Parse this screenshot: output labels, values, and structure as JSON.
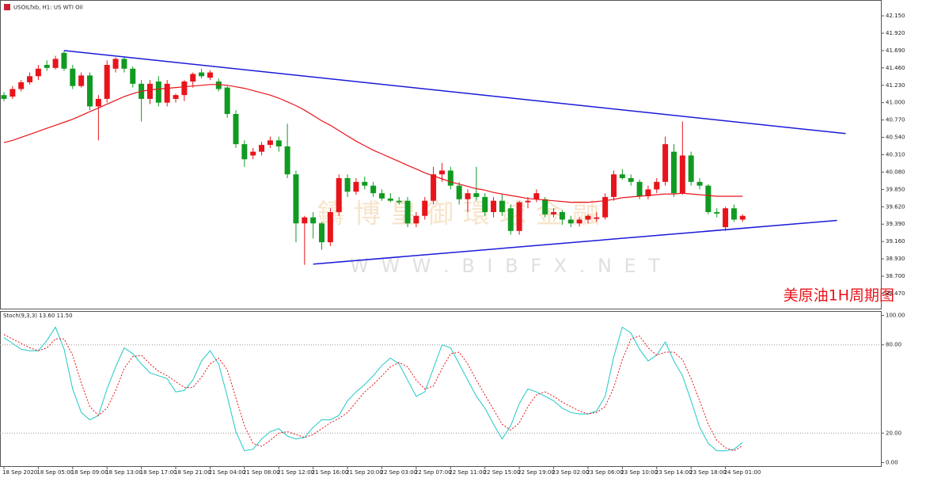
{
  "chart_data": [
    {
      "type": "candlestick",
      "title": "USOILfxb, H1: US WTI Oil",
      "annotation": "美原油1H周期图",
      "watermark": [
        "鑄博皇御環球金融",
        "W W W . B I B F X . N E T"
      ],
      "up_color": "#e8141b",
      "down_color": "#119a22",
      "xlim": [
        -0.46,
        102.1
      ],
      "ylim": [
        38.26,
        42.36
      ],
      "yticks": [
        {
          "value": 42.15,
          "label": "42.150"
        },
        {
          "value": 41.92,
          "label": "41.920"
        },
        {
          "value": 41.69,
          "label": "41.690"
        },
        {
          "value": 41.46,
          "label": "41.460"
        },
        {
          "value": 41.23,
          "label": "41.230"
        },
        {
          "value": 41.0,
          "label": "41.000"
        },
        {
          "value": 40.77,
          "label": "40.770"
        },
        {
          "value": 40.54,
          "label": "40.540"
        },
        {
          "value": 40.31,
          "label": "40.310"
        },
        {
          "value": 40.08,
          "label": "40.080"
        },
        {
          "value": 39.85,
          "label": "39.850"
        },
        {
          "value": 39.62,
          "label": "39.620"
        },
        {
          "value": 39.39,
          "label": "39.390"
        },
        {
          "value": 39.16,
          "label": "39.160"
        },
        {
          "value": 38.93,
          "label": "38.930"
        },
        {
          "value": 38.7,
          "label": "38.700"
        },
        {
          "value": 38.47,
          "label": "38.470"
        }
      ],
      "categories": [
        "18 Sep 2020",
        null,
        null,
        null,
        "18 Sep 05:00",
        null,
        null,
        null,
        "18 Sep 09:00",
        null,
        null,
        null,
        "18 Sep 13:00",
        null,
        null,
        null,
        "18 Sep 17:00",
        null,
        null,
        null,
        "18 Sep 21:00",
        null,
        null,
        null,
        "21 Sep 04:00",
        null,
        null,
        null,
        "21 Sep 08:00",
        null,
        null,
        null,
        "21 Sep 12:00",
        null,
        null,
        null,
        "21 Sep 16:00",
        null,
        null,
        null,
        "21 Sep 20:00",
        null,
        null,
        null,
        "22 Sep 03:00",
        null,
        null,
        null,
        "22 Sep 07:00",
        null,
        null,
        null,
        "22 Sep 11:00",
        null,
        null,
        null,
        "22 Sep 15:00",
        null,
        null,
        null,
        "22 Sep 19:00",
        null,
        null,
        null,
        "23 Sep 02:00",
        null,
        null,
        null,
        "23 Sep 06:00",
        null,
        null,
        null,
        "23 Sep 10:00",
        null,
        null,
        null,
        "23 Sep 14:00",
        null,
        null,
        null,
        "23 Sep 18:00",
        null,
        null,
        null,
        "24 Sep 01:00",
        null,
        null
      ],
      "ohlc": [
        [
          41.1,
          41.14,
          41.02,
          41.05
        ],
        [
          41.08,
          41.22,
          41.05,
          41.18
        ],
        [
          41.18,
          41.3,
          41.15,
          41.27
        ],
        [
          41.27,
          41.4,
          41.24,
          41.35
        ],
        [
          41.35,
          41.5,
          41.3,
          41.45
        ],
        [
          41.5,
          41.56,
          41.42,
          41.46
        ],
        [
          41.46,
          41.62,
          41.44,
          41.58
        ],
        [
          41.66,
          41.69,
          41.42,
          41.45
        ],
        [
          41.45,
          41.5,
          41.18,
          41.22
        ],
        [
          41.22,
          41.4,
          41.2,
          41.36
        ],
        [
          41.36,
          41.4,
          40.9,
          40.95
        ],
        [
          40.95,
          41.1,
          40.5,
          41.05
        ],
        [
          41.05,
          41.56,
          41.0,
          41.5
        ],
        [
          41.45,
          41.6,
          41.4,
          41.58
        ],
        [
          41.58,
          41.6,
          41.4,
          41.45
        ],
        [
          41.45,
          41.48,
          41.2,
          41.25
        ],
        [
          41.25,
          41.3,
          40.75,
          41.05
        ],
        [
          41.05,
          41.3,
          40.98,
          41.25
        ],
        [
          41.28,
          41.35,
          40.95,
          41.0
        ],
        [
          41.0,
          41.3,
          40.95,
          41.25
        ],
        [
          41.05,
          41.12,
          41.0,
          41.1
        ],
        [
          41.1,
          41.3,
          41.02,
          41.28
        ],
        [
          41.28,
          41.4,
          41.2,
          41.38
        ],
        [
          41.4,
          41.45,
          41.32,
          41.35
        ],
        [
          41.33,
          41.43,
          41.3,
          41.4
        ],
        [
          41.28,
          41.32,
          41.15,
          41.18
        ],
        [
          41.2,
          41.22,
          40.8,
          40.85
        ],
        [
          40.85,
          40.9,
          40.4,
          40.45
        ],
        [
          40.45,
          40.5,
          40.15,
          40.25
        ],
        [
          40.3,
          40.4,
          40.25,
          40.35
        ],
        [
          40.35,
          40.48,
          40.3,
          40.44
        ],
        [
          40.44,
          40.55,
          40.4,
          40.5
        ],
        [
          40.5,
          40.55,
          40.35,
          40.42
        ],
        [
          40.42,
          40.72,
          40.0,
          40.05
        ],
        [
          40.05,
          40.1,
          39.15,
          39.4
        ],
        [
          39.4,
          39.5,
          38.85,
          39.48
        ],
        [
          39.48,
          39.55,
          39.2,
          39.4
        ],
        [
          39.4,
          39.42,
          39.05,
          39.15
        ],
        [
          39.15,
          39.6,
          39.1,
          39.55
        ],
        [
          39.55,
          40.05,
          39.5,
          40.0
        ],
        [
          40.0,
          40.05,
          39.75,
          39.82
        ],
        [
          39.82,
          40.0,
          39.78,
          39.95
        ],
        [
          39.95,
          40.02,
          39.85,
          39.9
        ],
        [
          39.9,
          39.95,
          39.75,
          39.8
        ],
        [
          39.8,
          39.85,
          39.7,
          39.73
        ],
        [
          39.73,
          39.8,
          39.68,
          39.7
        ],
        [
          39.7,
          39.75,
          39.65,
          39.68
        ],
        [
          39.7,
          39.75,
          39.35,
          39.4
        ],
        [
          39.4,
          39.55,
          39.35,
          39.5
        ],
        [
          39.5,
          39.75,
          39.45,
          39.7
        ],
        [
          39.7,
          40.15,
          39.65,
          40.05
        ],
        [
          40.05,
          40.2,
          39.95,
          40.1
        ],
        [
          40.1,
          40.15,
          39.85,
          39.9
        ],
        [
          39.9,
          39.95,
          39.65,
          39.72
        ],
        [
          39.72,
          39.85,
          39.55,
          39.8
        ],
        [
          39.8,
          40.15,
          39.7,
          39.75
        ],
        [
          39.75,
          39.8,
          39.5,
          39.55
        ],
        [
          39.55,
          39.75,
          39.48,
          39.7
        ],
        [
          39.7,
          39.78,
          39.5,
          39.55
        ],
        [
          39.6,
          39.65,
          39.25,
          39.3
        ],
        [
          39.3,
          39.7,
          39.25,
          39.68
        ],
        [
          39.68,
          39.75,
          39.6,
          39.7
        ],
        [
          39.72,
          39.85,
          39.68,
          39.8
        ],
        [
          39.72,
          39.75,
          39.48,
          39.52
        ],
        [
          39.52,
          39.6,
          39.48,
          39.55
        ],
        [
          39.55,
          39.58,
          39.38,
          39.45
        ],
        [
          39.45,
          39.5,
          39.35,
          39.4
        ],
        [
          39.4,
          39.48,
          39.36,
          39.45
        ],
        [
          39.45,
          39.52,
          39.4,
          39.5
        ],
        [
          39.46,
          39.55,
          39.42,
          39.48
        ],
        [
          39.48,
          39.8,
          39.45,
          39.75
        ],
        [
          39.75,
          40.1,
          39.7,
          40.05
        ],
        [
          40.05,
          40.12,
          39.98,
          40.0
        ],
        [
          40.0,
          40.05,
          39.9,
          39.95
        ],
        [
          39.95,
          39.98,
          39.72,
          39.76
        ],
        [
          39.76,
          39.9,
          39.72,
          39.85
        ],
        [
          39.85,
          40.0,
          39.8,
          39.95
        ],
        [
          39.95,
          40.55,
          39.9,
          40.45
        ],
        [
          40.35,
          40.45,
          39.75,
          39.8
        ],
        [
          39.8,
          40.75,
          39.78,
          40.3
        ],
        [
          40.3,
          40.35,
          39.9,
          39.95
        ],
        [
          39.95,
          40.0,
          39.85,
          39.9
        ],
        [
          39.9,
          39.92,
          39.52,
          39.55
        ],
        [
          39.55,
          39.6,
          39.48,
          39.53
        ],
        [
          39.35,
          39.62,
          39.3,
          39.6
        ],
        [
          39.6,
          39.65,
          39.42,
          39.45
        ],
        [
          39.45,
          39.52,
          39.42,
          39.5
        ]
      ],
      "ma": {
        "color": "#e8141b",
        "values": [
          40.47,
          40.5,
          40.54,
          40.58,
          40.62,
          40.66,
          40.7,
          40.74,
          40.78,
          40.83,
          40.88,
          40.93,
          40.98,
          41.03,
          41.08,
          41.12,
          41.15,
          41.17,
          41.18,
          41.19,
          41.2,
          41.21,
          41.22,
          41.23,
          41.24,
          41.24,
          41.23,
          41.21,
          41.19,
          41.16,
          41.13,
          41.1,
          41.06,
          41.01,
          40.96,
          40.9,
          40.83,
          40.76,
          40.7,
          40.63,
          40.56,
          40.49,
          40.43,
          40.37,
          40.32,
          40.27,
          40.22,
          40.17,
          40.12,
          40.07,
          40.03,
          39.99,
          39.95,
          39.92,
          39.89,
          39.86,
          39.84,
          39.81,
          39.79,
          39.77,
          39.75,
          39.73,
          39.72,
          39.71,
          39.7,
          39.69,
          39.68,
          39.68,
          39.68,
          39.69,
          39.7,
          39.72,
          39.74,
          39.75,
          39.76,
          39.77,
          39.78,
          39.79,
          39.79,
          39.8,
          39.79,
          39.78,
          39.77,
          39.76,
          39.76,
          39.76,
          39.76
        ]
      },
      "trendlines": [
        {
          "color": "#1a1ad8",
          "x": [
            7,
            98
          ],
          "y": [
            41.69,
            40.59
          ]
        },
        {
          "color": "#1a1ad8",
          "x": [
            36,
            97
          ],
          "y": [
            38.86,
            39.44
          ]
        }
      ]
    },
    {
      "type": "line",
      "title": "Stoch(9,3,3) 13.60 11.50",
      "ylim": [
        -3,
        103
      ],
      "yticks": [
        {
          "value": 100,
          "label": "100.00"
        },
        {
          "value": 80,
          "label": "80.00"
        },
        {
          "value": 20,
          "label": "20.00"
        },
        {
          "value": 0,
          "label": "0.00"
        }
      ],
      "levels": [
        80,
        20
      ],
      "series": [
        {
          "color": "#1fc8c8",
          "dash": false,
          "values": [
            85,
            81,
            77,
            76,
            76,
            83,
            92,
            77,
            50,
            34,
            29,
            32,
            50,
            65,
            78,
            74,
            67,
            61,
            59,
            57,
            48,
            49,
            56,
            69,
            76,
            67,
            45,
            21,
            8,
            9,
            16,
            21,
            23,
            18,
            16,
            17,
            24,
            29,
            29,
            32,
            42,
            48,
            53,
            59,
            66,
            71,
            67,
            56,
            45,
            48,
            64,
            80,
            78,
            67,
            56,
            45,
            37,
            26,
            16,
            25,
            40,
            50,
            48,
            45,
            42,
            37,
            34,
            33,
            33,
            35,
            45,
            72,
            92,
            88,
            77,
            69,
            73,
            82,
            69,
            59,
            42,
            24,
            13,
            8,
            8,
            9,
            13.6
          ]
        },
        {
          "color": "#e8141b",
          "dash": true,
          "values": [
            87,
            84,
            81,
            78,
            76,
            78,
            84,
            84,
            73,
            54,
            38,
            32,
            37,
            49,
            64,
            72,
            73,
            67,
            62,
            59,
            55,
            51,
            51,
            58,
            67,
            71,
            63,
            44,
            25,
            13,
            11,
            15,
            20,
            21,
            19,
            17,
            19,
            23,
            27,
            30,
            34,
            41,
            48,
            53,
            59,
            65,
            68,
            65,
            56,
            50,
            52,
            64,
            74,
            75,
            67,
            56,
            46,
            36,
            26,
            22,
            27,
            38,
            46,
            48,
            45,
            41,
            38,
            35,
            33,
            34,
            38,
            51,
            70,
            84,
            86,
            78,
            73,
            75,
            75,
            70,
            57,
            42,
            26,
            15,
            10,
            8,
            11.5
          ]
        }
      ]
    }
  ]
}
